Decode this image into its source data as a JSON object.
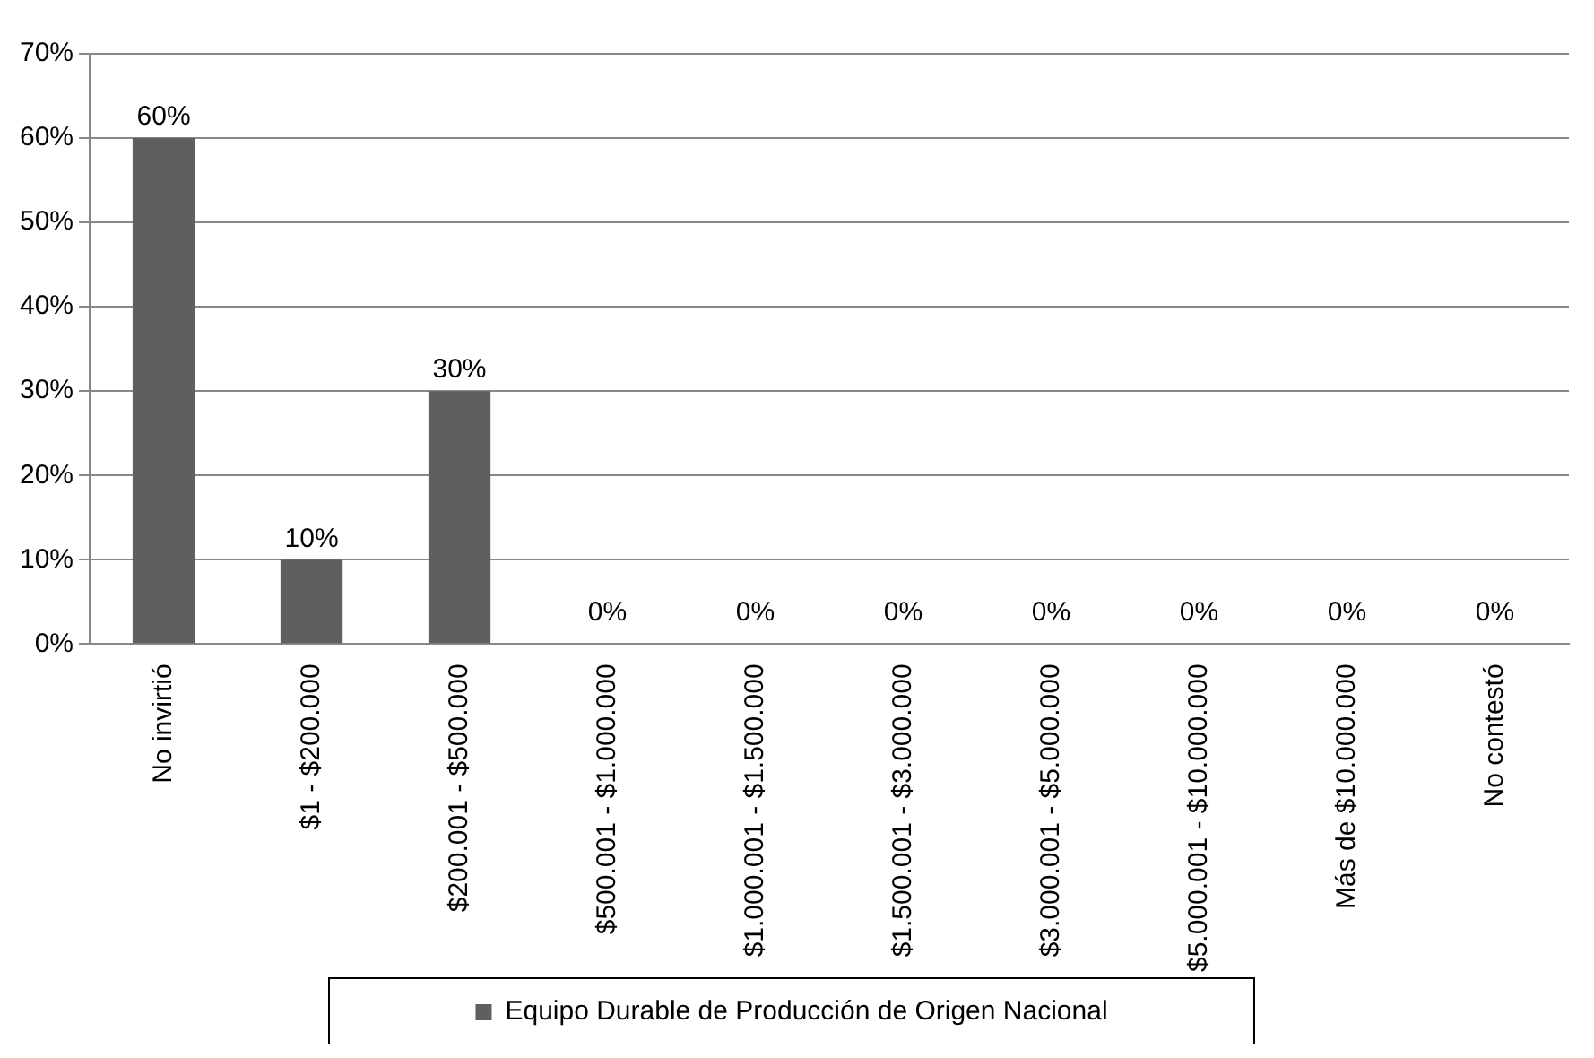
{
  "chart_data": {
    "type": "bar",
    "categories": [
      "No invirtió",
      "$1 - $200.000",
      "$200.001 - $500.000",
      "$500.001 - $1.000.000",
      "$1.000.001 - $1.500.000",
      "$1.500.001 - $3.000.000",
      "$3.000.001 - $5.000.000",
      "$5.000.001 - $10.000.000",
      "Más de $10.000.000",
      "No contestó"
    ],
    "series": [
      {
        "name": "Equipo Durable de Producción de Origen Nacional",
        "color": "#5f5f5f",
        "values": [
          60,
          10,
          30,
          0,
          0,
          0,
          0,
          0,
          0,
          0
        ],
        "value_labels": [
          "60%",
          "10%",
          "30%",
          "0%",
          "0%",
          "0%",
          "0%",
          "0%",
          "0%",
          "0%"
        ]
      }
    ],
    "ylim": [
      0,
      70
    ],
    "yticks": [
      {
        "value": 0,
        "label": "0%"
      },
      {
        "value": 10,
        "label": "10%"
      },
      {
        "value": 20,
        "label": "20%"
      },
      {
        "value": 30,
        "label": "30%"
      },
      {
        "value": 40,
        "label": "40%"
      },
      {
        "value": 50,
        "label": "50%"
      },
      {
        "value": 60,
        "label": "60%"
      },
      {
        "value": 70,
        "label": "70%"
      }
    ],
    "grid": "y",
    "legend": "bottom"
  }
}
